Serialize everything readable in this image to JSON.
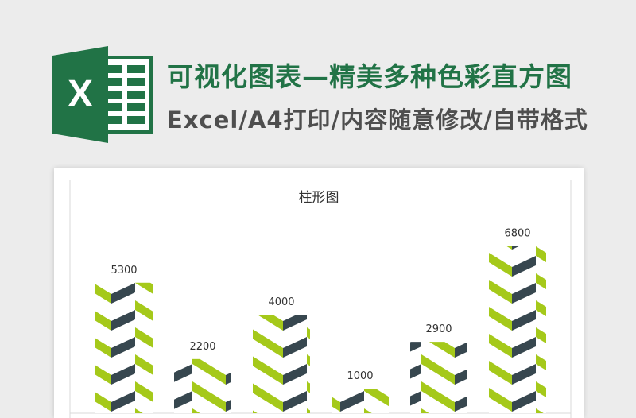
{
  "header": {
    "title": "可视化图表—精美多种色彩直方图",
    "subtitle": "Excel/A4打印/内容随意修改/自带格式",
    "logo_letter": "X",
    "logo_icon": "excel-logo-icon"
  },
  "colors": {
    "brand_green": "#217346",
    "chevron_dark": "#37474f",
    "chevron_light": "#a5c91a"
  },
  "chart_data": {
    "type": "bar",
    "title": "柱形图",
    "categories": [
      "",
      "",
      "",
      "",
      "",
      ""
    ],
    "values": [
      5300,
      2200,
      4000,
      1000,
      2900,
      6800
    ],
    "data_labels": [
      "5300",
      "2200",
      "4000",
      "1000",
      "2900",
      "6800"
    ],
    "ylim": [
      0,
      7100
    ],
    "grid": false,
    "legend": "none",
    "bar_fill": "chevron pattern (dark slate / yellow-green)"
  }
}
